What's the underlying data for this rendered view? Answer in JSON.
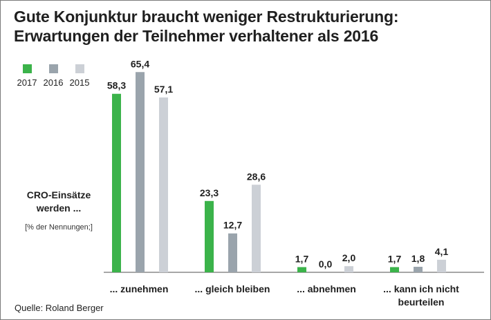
{
  "title_line1": "Gute Konjunktur braucht weniger Restrukturierung:",
  "title_line2": "Erwartungen der Teilnehmer verhaltener als 2016",
  "side_label_line1": "CRO-Einsätze",
  "side_label_line2": "werden ...",
  "side_sublabel": "[% der Nennungen;]",
  "source": "Quelle: Roland Berger",
  "colors": {
    "s2017": "#3bb34a",
    "s2016": "#9aa4ac",
    "s2015": "#ccd0d6",
    "axis": "#8a8a8a"
  },
  "chart_data": {
    "type": "bar",
    "categories": [
      [
        "... zunehmen"
      ],
      [
        "... gleich bleiben"
      ],
      [
        "... abnehmen"
      ],
      [
        "... kann ich nicht",
        "beurteilen"
      ]
    ],
    "series": [
      {
        "name": "2017",
        "values": [
          58.3,
          23.3,
          1.7,
          1.7
        ],
        "labels": [
          "58,3",
          "23,3",
          "1,7",
          "1,7"
        ]
      },
      {
        "name": "2016",
        "values": [
          65.4,
          12.7,
          0.0,
          1.8
        ],
        "labels": [
          "65,4",
          "12,7",
          "0,0",
          "1,8"
        ]
      },
      {
        "name": "2015",
        "values": [
          57.1,
          28.6,
          2.0,
          4.1
        ],
        "labels": [
          "57,1",
          "28,6",
          "2,0",
          "4,1"
        ]
      }
    ],
    "ylim": [
      0,
      70
    ],
    "grid": false,
    "legend_position": "top-left"
  }
}
